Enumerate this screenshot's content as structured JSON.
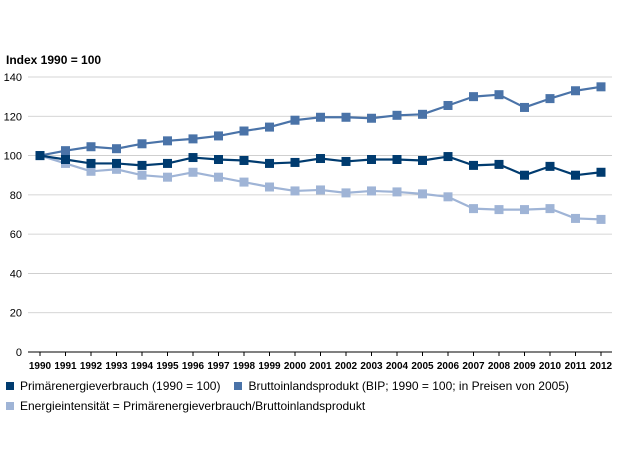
{
  "chart_data": {
    "type": "line",
    "ylabel": "Index 1990 = 100",
    "ylim": [
      0,
      140
    ],
    "yticks": [
      0,
      20,
      40,
      60,
      80,
      100,
      120,
      140
    ],
    "grid": "horizontal",
    "categories": [
      "1990",
      "1991",
      "1992",
      "1993",
      "1994",
      "1995",
      "1996",
      "1997",
      "1998",
      "1999",
      "2000",
      "2001",
      "2002",
      "2003",
      "2004",
      "2005",
      "2006",
      "2007",
      "2008",
      "2009",
      "2010",
      "2011",
      "2012"
    ],
    "series": [
      {
        "name": "Primärenergieverbrauch (1990 = 100)",
        "color": "#003b6f",
        "values": [
          100,
          98,
          96,
          96,
          95,
          96,
          99,
          98,
          97.5,
          96,
          96.5,
          98.5,
          97,
          98,
          98,
          97.5,
          99.5,
          95,
          95.5,
          90,
          94.5,
          90,
          91.5
        ]
      },
      {
        "name": "Bruttoinlandsprodukt (BIP; 1990 = 100; in Preisen von 2005)",
        "color": "#4a73a8",
        "values": [
          100,
          102.5,
          104.5,
          103.5,
          106,
          107.5,
          108.5,
          110,
          112.5,
          114.5,
          118,
          119.5,
          119.5,
          119,
          120.5,
          121,
          125.5,
          130,
          131,
          124.5,
          129,
          133,
          135
        ]
      },
      {
        "name": "Energieintensität = Primärenergieverbrauch/Bruttoinlandsprodukt",
        "color": "#9fb4d6",
        "values": [
          100,
          96,
          92,
          93,
          90,
          89,
          91.5,
          89,
          86.5,
          84,
          82,
          82.5,
          81,
          82,
          81.5,
          80.5,
          79,
          73,
          72.5,
          72.5,
          73,
          68,
          67.5
        ]
      }
    ],
    "legend_position": "bottom"
  }
}
